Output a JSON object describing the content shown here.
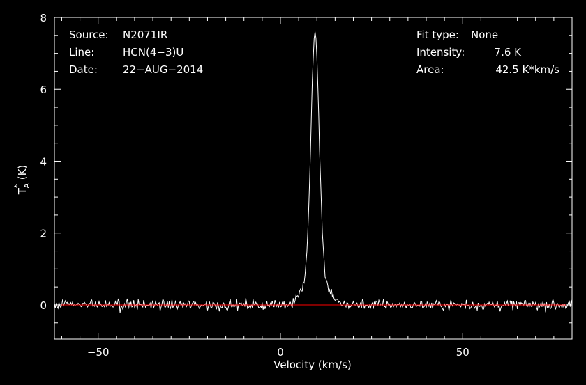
{
  "chart_data": {
    "type": "line",
    "xlabel": "Velocity (km/s)",
    "ylabel_main": "T",
    "ylabel_sup": "*",
    "ylabel_sub": "A",
    "ylabel_unit": " (K)",
    "xlim": [
      -62,
      80
    ],
    "ylim": [
      -0.95,
      8
    ],
    "x_ticks": [
      -50,
      0,
      50
    ],
    "y_ticks": [
      0,
      2,
      4,
      6,
      8
    ],
    "x_tick_labels": [
      "−50",
      "0",
      "50"
    ],
    "y_tick_labels": [
      "0",
      "2",
      "4",
      "6",
      "8"
    ],
    "baseline": 0,
    "colors": {
      "background": "#000000",
      "spectrum": "#ffffff",
      "baseline": "#ff0000",
      "axes": "#ffffff"
    },
    "line": {
      "profile": {
        "peak_velocity": 9.5,
        "peak_intensity": 7.6,
        "core_width_kms": 2.6,
        "wing_amplitude": 0.9,
        "wing_width_kms": 7.0
      },
      "noise_rms": 0.14,
      "channel_width_kms": 0.25
    },
    "annotations_left": [
      {
        "key": "Source:",
        "value": "N2071IR"
      },
      {
        "key": "Line:",
        "value": "HCN(4−3)U"
      },
      {
        "key": "Date:",
        "value": "22−AUG−2014"
      }
    ],
    "annotations_right": [
      {
        "key": "Fit type:",
        "value": "None"
      },
      {
        "key": "Intensity:",
        "value": "7.6 K"
      },
      {
        "key": "Area:",
        "value": "42.5 K*km/s"
      }
    ]
  }
}
